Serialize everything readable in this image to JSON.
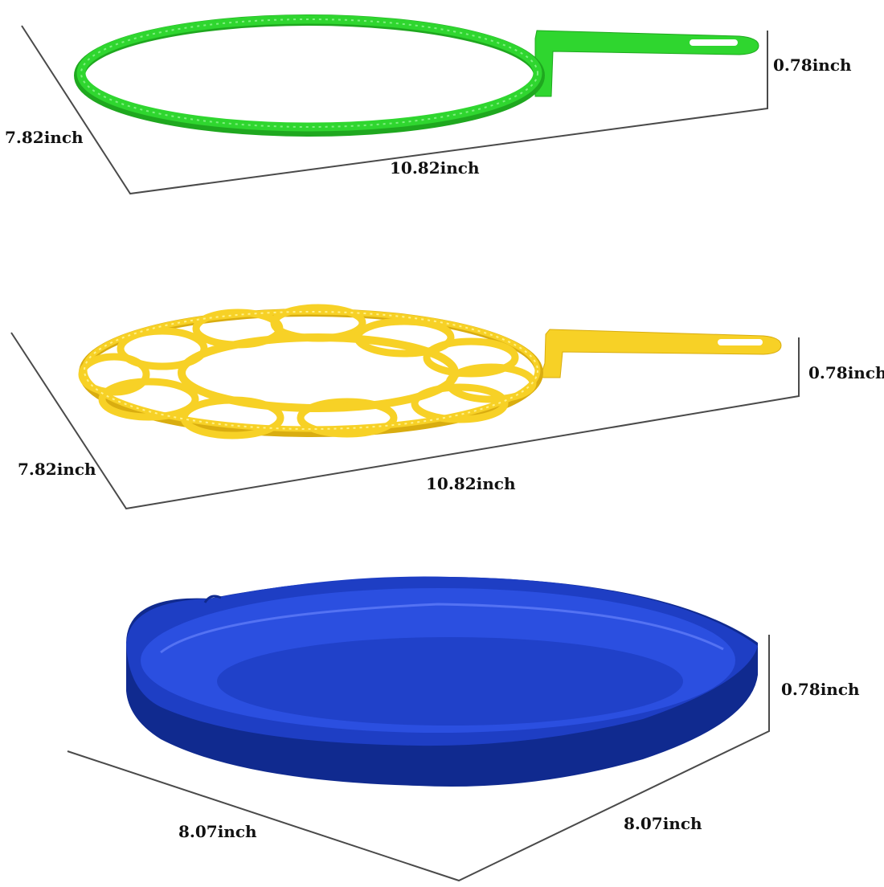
{
  "colors": {
    "wand_green": "#2fd62f",
    "wand_green_dark": "#1fa81f",
    "wand_yellow": "#f7d126",
    "wand_yellow_dark": "#d9ad10",
    "tray_blue": "#1e3ec4",
    "tray_blue_dark": "#102a8f",
    "tray_blue_light": "#2b4fe0",
    "dimension_line": "#4a4a4a"
  },
  "items": [
    {
      "name": "green bubble wand",
      "depth_label": "7.82inch",
      "width_label": "10.82inch",
      "height_label": "0.78inch"
    },
    {
      "name": "yellow multi-ring bubble wand",
      "depth_label": "7.82inch",
      "width_label": "10.82inch",
      "height_label": "0.78inch"
    },
    {
      "name": "blue bubble tray",
      "depth_label": "8.07inch",
      "width_label": "8.07inch",
      "height_label": "0.78inch"
    }
  ]
}
